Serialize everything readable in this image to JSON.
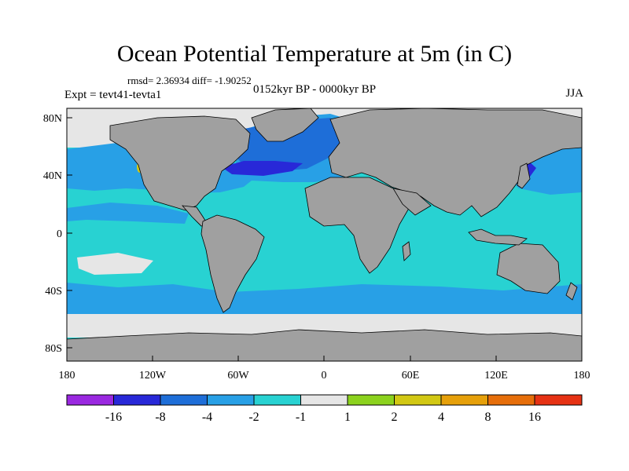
{
  "figure": {
    "title": "Ocean Potential Temperature at 5m (in C)",
    "stats": "rmsd= 2.36934 diff= -1.90252",
    "experiment": "Expt = tevt41-tevta1",
    "period": "0152kyr BP - 0000kyr BP",
    "season": "JJA"
  },
  "axes": {
    "lat_ticks": [
      "80N",
      "40N",
      "0",
      "40S",
      "80S"
    ],
    "lon_ticks": [
      "180",
      "120W",
      "60W",
      "0",
      "60E",
      "120E",
      "180"
    ]
  },
  "colorbar": {
    "labels": [
      "-16",
      "-8",
      "-4",
      "-2",
      "-1",
      "1",
      "2",
      "4",
      "8",
      "16"
    ],
    "colors": [
      "#9a28e0",
      "#2828d8",
      "#1e6ed8",
      "#28a0e6",
      "#28d2d2",
      "#e6e6e6",
      "#8cd21e",
      "#d2c814",
      "#e6a00a",
      "#e66e0a",
      "#e63214"
    ]
  },
  "map_colors": {
    "land": "#a0a0a0",
    "near_zero": "#e6e6e6",
    "minus1_to_minus2": "#28d2d2",
    "minus2_to_minus4": "#28a0e6",
    "minus4_to_minus8": "#1e6ed8",
    "minus8_to_minus16": "#2828d8",
    "plus2_to_plus4": "#d2c814",
    "plus1_to_plus2": "#8cd21e"
  }
}
